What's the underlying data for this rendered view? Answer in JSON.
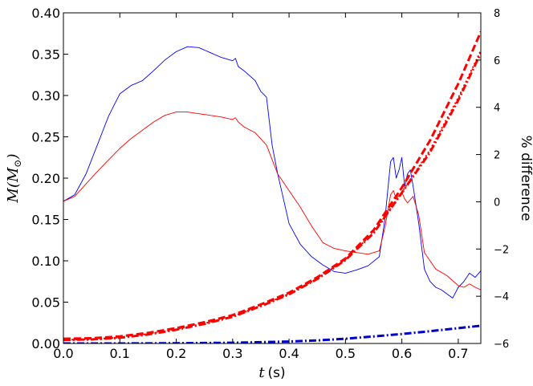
{
  "chart_data": {
    "type": "line",
    "xlabel_var": "t",
    "xlabel_unit": "(s)",
    "ylabel_left_var": "M",
    "ylabel_left_unit": "(M",
    "ylabel_left_sub": "⊙",
    "ylabel_left_close": ")",
    "ylabel_right": "% difference",
    "xlim": [
      0.0,
      0.74
    ],
    "ylim_left": [
      0.0,
      0.4
    ],
    "ylim_right": [
      -6,
      8
    ],
    "x_ticks": [
      0.0,
      0.1,
      0.2,
      0.3,
      0.4,
      0.5,
      0.6,
      0.7
    ],
    "x_tick_labels": [
      "0.0",
      "0.1",
      "0.2",
      "0.3",
      "0.4",
      "0.5",
      "0.6",
      "0.7"
    ],
    "y_left_ticks": [
      0.0,
      0.05,
      0.1,
      0.15,
      0.2,
      0.25,
      0.3,
      0.35,
      0.4
    ],
    "y_left_tick_labels": [
      "0.00",
      "0.05",
      "0.10",
      "0.15",
      "0.20",
      "0.25",
      "0.30",
      "0.35",
      "0.40"
    ],
    "y_right_ticks": [
      -6,
      -4,
      -2,
      0,
      2,
      4,
      6,
      8
    ],
    "y_right_tick_labels": [
      "−6",
      "−4",
      "−2",
      "0",
      "2",
      "4",
      "6",
      "8"
    ],
    "series": [
      {
        "axis": "left",
        "color": "#0000ff",
        "style": "solid",
        "width": 0.9,
        "x": [
          0.0,
          0.02,
          0.04,
          0.06,
          0.08,
          0.1,
          0.12,
          0.14,
          0.16,
          0.18,
          0.2,
          0.22,
          0.24,
          0.26,
          0.28,
          0.3,
          0.305,
          0.31,
          0.32,
          0.34,
          0.35,
          0.36,
          0.37,
          0.38,
          0.39,
          0.4,
          0.42,
          0.44,
          0.46,
          0.48,
          0.5,
          0.52,
          0.54,
          0.56,
          0.57,
          0.58,
          0.585,
          0.59,
          0.595,
          0.6,
          0.605,
          0.61,
          0.615,
          0.62,
          0.63,
          0.64,
          0.65,
          0.66,
          0.67,
          0.68,
          0.69,
          0.7,
          0.71,
          0.72,
          0.73,
          0.74
        ],
        "y": [
          0.172,
          0.18,
          0.205,
          0.24,
          0.275,
          0.302,
          0.312,
          0.318,
          0.33,
          0.343,
          0.353,
          0.359,
          0.358,
          0.352,
          0.346,
          0.342,
          0.345,
          0.335,
          0.33,
          0.318,
          0.305,
          0.298,
          0.24,
          0.205,
          0.175,
          0.145,
          0.12,
          0.105,
          0.095,
          0.087,
          0.085,
          0.089,
          0.094,
          0.105,
          0.15,
          0.22,
          0.225,
          0.2,
          0.21,
          0.225,
          0.19,
          0.205,
          0.21,
          0.19,
          0.145,
          0.09,
          0.075,
          0.068,
          0.065,
          0.06,
          0.055,
          0.068,
          0.075,
          0.085,
          0.08,
          0.088
        ]
      },
      {
        "axis": "left",
        "color": "#ff0000",
        "style": "solid",
        "width": 0.9,
        "x": [
          0.0,
          0.02,
          0.04,
          0.06,
          0.08,
          0.1,
          0.12,
          0.14,
          0.16,
          0.18,
          0.2,
          0.22,
          0.24,
          0.26,
          0.28,
          0.3,
          0.305,
          0.31,
          0.32,
          0.34,
          0.36,
          0.38,
          0.4,
          0.42,
          0.44,
          0.46,
          0.48,
          0.5,
          0.52,
          0.54,
          0.56,
          0.57,
          0.58,
          0.585,
          0.59,
          0.6,
          0.605,
          0.61,
          0.62,
          0.63,
          0.64,
          0.66,
          0.68,
          0.7,
          0.71,
          0.72,
          0.73,
          0.74
        ],
        "y": [
          0.172,
          0.178,
          0.193,
          0.208,
          0.222,
          0.236,
          0.248,
          0.258,
          0.268,
          0.276,
          0.28,
          0.28,
          0.278,
          0.276,
          0.274,
          0.271,
          0.273,
          0.268,
          0.262,
          0.255,
          0.24,
          0.205,
          0.185,
          0.165,
          0.142,
          0.122,
          0.115,
          0.112,
          0.11,
          0.108,
          0.112,
          0.14,
          0.18,
          0.185,
          0.175,
          0.183,
          0.175,
          0.17,
          0.178,
          0.155,
          0.11,
          0.09,
          0.082,
          0.07,
          0.068,
          0.072,
          0.068,
          0.065
        ]
      },
      {
        "axis": "right",
        "color": "#ff0000",
        "style": "dashed",
        "width": 3,
        "x": [
          0.0,
          0.05,
          0.1,
          0.15,
          0.2,
          0.25,
          0.3,
          0.35,
          0.4,
          0.45,
          0.5,
          0.55,
          0.6,
          0.65,
          0.7,
          0.74
        ],
        "y": [
          -5.8,
          -5.78,
          -5.7,
          -5.55,
          -5.35,
          -5.1,
          -4.8,
          -4.35,
          -3.85,
          -3.2,
          -2.4,
          -1.2,
          0.6,
          2.6,
          5.0,
          7.2
        ]
      },
      {
        "axis": "right",
        "color": "#ff0000",
        "style": "dotted",
        "width": 2,
        "x": [
          0.0,
          0.05,
          0.1,
          0.15,
          0.2,
          0.25,
          0.3,
          0.35,
          0.4,
          0.45,
          0.5,
          0.55,
          0.6,
          0.65,
          0.7,
          0.74
        ],
        "y": [
          -5.85,
          -5.82,
          -5.75,
          -5.6,
          -5.4,
          -5.15,
          -4.85,
          -4.4,
          -3.9,
          -3.25,
          -2.45,
          -1.3,
          0.4,
          2.2,
          4.4,
          6.4
        ]
      },
      {
        "axis": "right",
        "color": "#ff0000",
        "style": "dashdot",
        "width": 3,
        "x": [
          0.0,
          0.05,
          0.1,
          0.15,
          0.2,
          0.25,
          0.3,
          0.35,
          0.4,
          0.45,
          0.5,
          0.55,
          0.6,
          0.65,
          0.7,
          0.74
        ],
        "y": [
          -5.85,
          -5.83,
          -5.76,
          -5.62,
          -5.42,
          -5.17,
          -4.87,
          -4.42,
          -3.92,
          -3.27,
          -2.47,
          -1.32,
          0.38,
          2.1,
          4.3,
          6.3
        ]
      },
      {
        "axis": "right",
        "color": "#0000cc",
        "style": "dashdot",
        "width": 3,
        "x": [
          0.0,
          0.1,
          0.2,
          0.3,
          0.4,
          0.45,
          0.5,
          0.55,
          0.6,
          0.65,
          0.7,
          0.74
        ],
        "y": [
          -6.0,
          -6.0,
          -5.99,
          -5.97,
          -5.92,
          -5.87,
          -5.8,
          -5.7,
          -5.6,
          -5.48,
          -5.35,
          -5.25
        ]
      }
    ]
  }
}
